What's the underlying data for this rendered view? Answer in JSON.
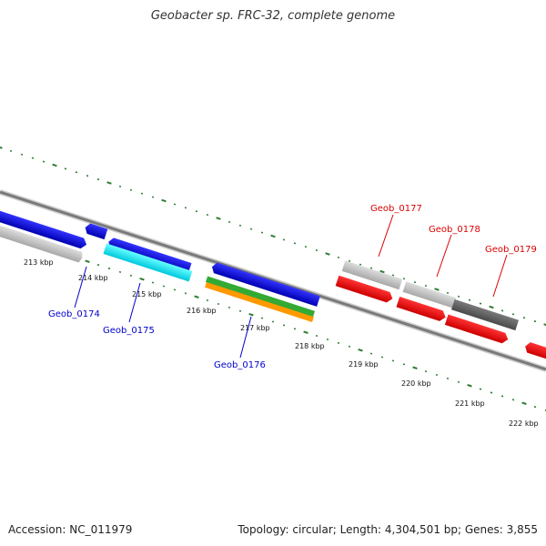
{
  "title": "Geobacter sp. FRC-32, complete genome",
  "footer": {
    "accession": "Accession: NC_011979",
    "topology": "Topology: circular; Length: 4,304,501 bp; Genes: 3,855"
  },
  "scale_labels": [
    "213 kbp",
    "214 kbp",
    "215 kbp",
    "216 kbp",
    "217 kbp",
    "218 kbp",
    "219 kbp",
    "220 kbp",
    "221 kbp",
    "222 kbp"
  ],
  "gene_labels": {
    "geob_0174": "Geob_0174",
    "geob_0175": "Geob_0175",
    "geob_0176": "Geob_0176",
    "geob_0177": "Geob_0177",
    "geob_0178": "Geob_0178",
    "geob_0179": "Geob_0179"
  },
  "colors": {
    "backbone": "#808080",
    "ticks": "#2e7d32",
    "blue_gene": "#0000dd",
    "cyan_gene": "#00e5ee",
    "green_gene": "#33aa33",
    "orange_gene": "#ff9900",
    "red_gene": "#ee0000",
    "light_gray_gene": "#c0c0c0",
    "dark_gray_gene": "#606060",
    "label_blue": "#0000cc",
    "label_red": "#dd0000"
  }
}
